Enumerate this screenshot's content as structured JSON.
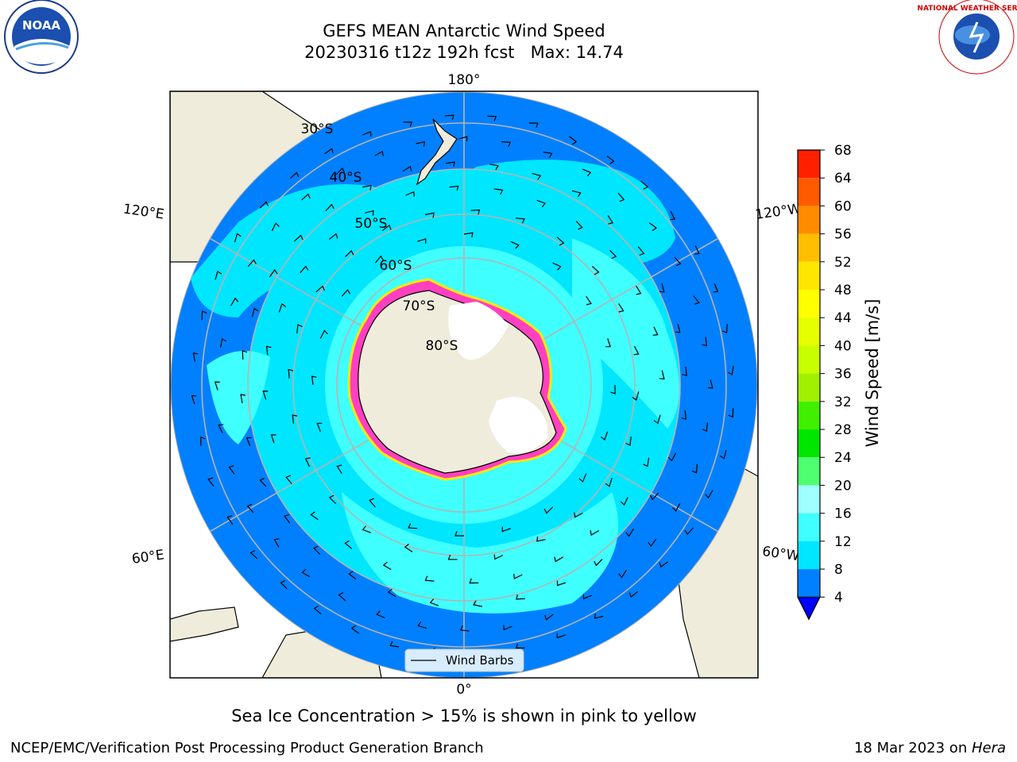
{
  "header": {
    "title_line1": "GEFS MEAN Antarctic Wind Speed",
    "title_line2": "20230316 t12z 192h fcst   Max: 14.74"
  },
  "logos": {
    "left_text": "NOAA",
    "right_text": "NATIONAL WEATHER SERVICE"
  },
  "map": {
    "longitude_labels": [
      "180°",
      "120°E",
      "120°W",
      "60°E",
      "60°W",
      "0°"
    ],
    "latitude_labels": [
      "30°S",
      "40°S",
      "50°S",
      "60°S",
      "70°S",
      "80°S"
    ],
    "legend_label": "Wind Barbs"
  },
  "colorbar": {
    "title": "Wind Speed [m/s]",
    "ticks": [
      "4",
      "8",
      "12",
      "16",
      "20",
      "24",
      "28",
      "32",
      "36",
      "40",
      "44",
      "48",
      "52",
      "56",
      "60",
      "64",
      "68"
    ],
    "colors": [
      "#0080ff",
      "#00e6ff",
      "#40ffff",
      "#a0ffff",
      "#50ff70",
      "#00e600",
      "#40f000",
      "#a0f000",
      "#c8ff00",
      "#e6ff00",
      "#ffff00",
      "#ffe600",
      "#ffbf00",
      "#ff8c00",
      "#ff5a00",
      "#ff2000"
    ],
    "extend_color": "#0000ff"
  },
  "map_colors": {
    "land": "#efecdc",
    "ice_sheet": "#ffffff",
    "sea_ice_edge": "#ff40c0",
    "grid": "#b4b4b4"
  },
  "caption": "Sea Ice Concentration > 15% is shown in pink to yellow",
  "footer": {
    "left": "NCEP/EMC/Verification Post Processing Product Generation Branch",
    "right_prefix": "18 Mar 2023 on ",
    "right_italic": "Hera"
  }
}
